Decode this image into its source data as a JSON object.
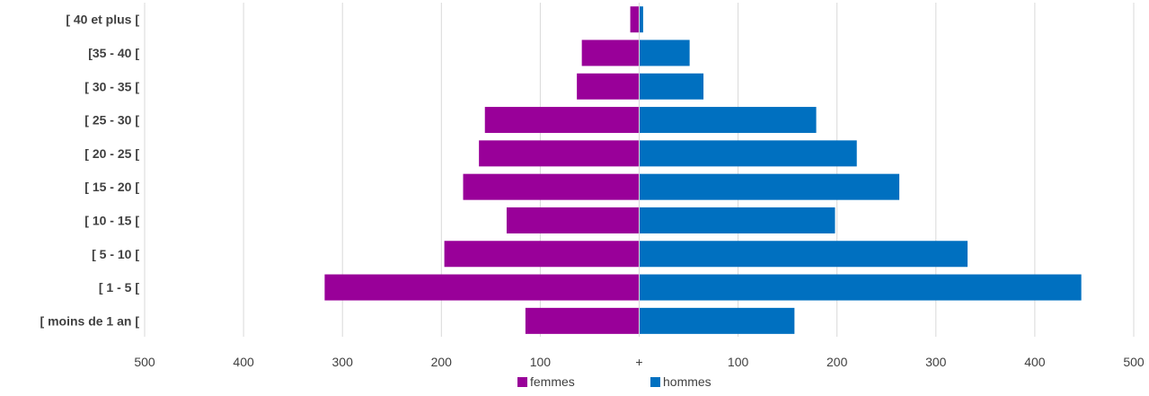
{
  "chart_data": {
    "type": "bar",
    "orientation": "horizontal-pyramid",
    "categories": [
      "[ moins de 1 an [",
      "[ 1 - 5 [",
      "[ 5 - 10 [",
      "[ 10 - 15 [",
      "[ 15 - 20 [",
      "[ 20 - 25 [",
      "[ 25 - 30 [",
      "[ 30 - 35 [",
      "[35 - 40 [",
      "[ 40 et plus ["
    ],
    "series": [
      {
        "name": "femmes",
        "color": "#990099",
        "side": "left",
        "values": [
          115,
          318,
          197,
          134,
          178,
          162,
          156,
          63,
          58,
          9
        ]
      },
      {
        "name": "hommes",
        "color": "#0070c0",
        "side": "right",
        "values": [
          157,
          447,
          332,
          198,
          263,
          220,
          179,
          65,
          51,
          4
        ]
      }
    ],
    "xlim": [
      -500,
      500
    ],
    "x_ticks": [
      -500,
      -400,
      -300,
      -200,
      -100,
      0,
      100,
      200,
      300,
      400,
      500
    ],
    "x_tick_labels": [
      "500",
      "400",
      "300",
      "200",
      "100",
      "+",
      "100",
      "200",
      "300",
      "400",
      "500"
    ],
    "grid": true,
    "legend_position": "bottom"
  }
}
